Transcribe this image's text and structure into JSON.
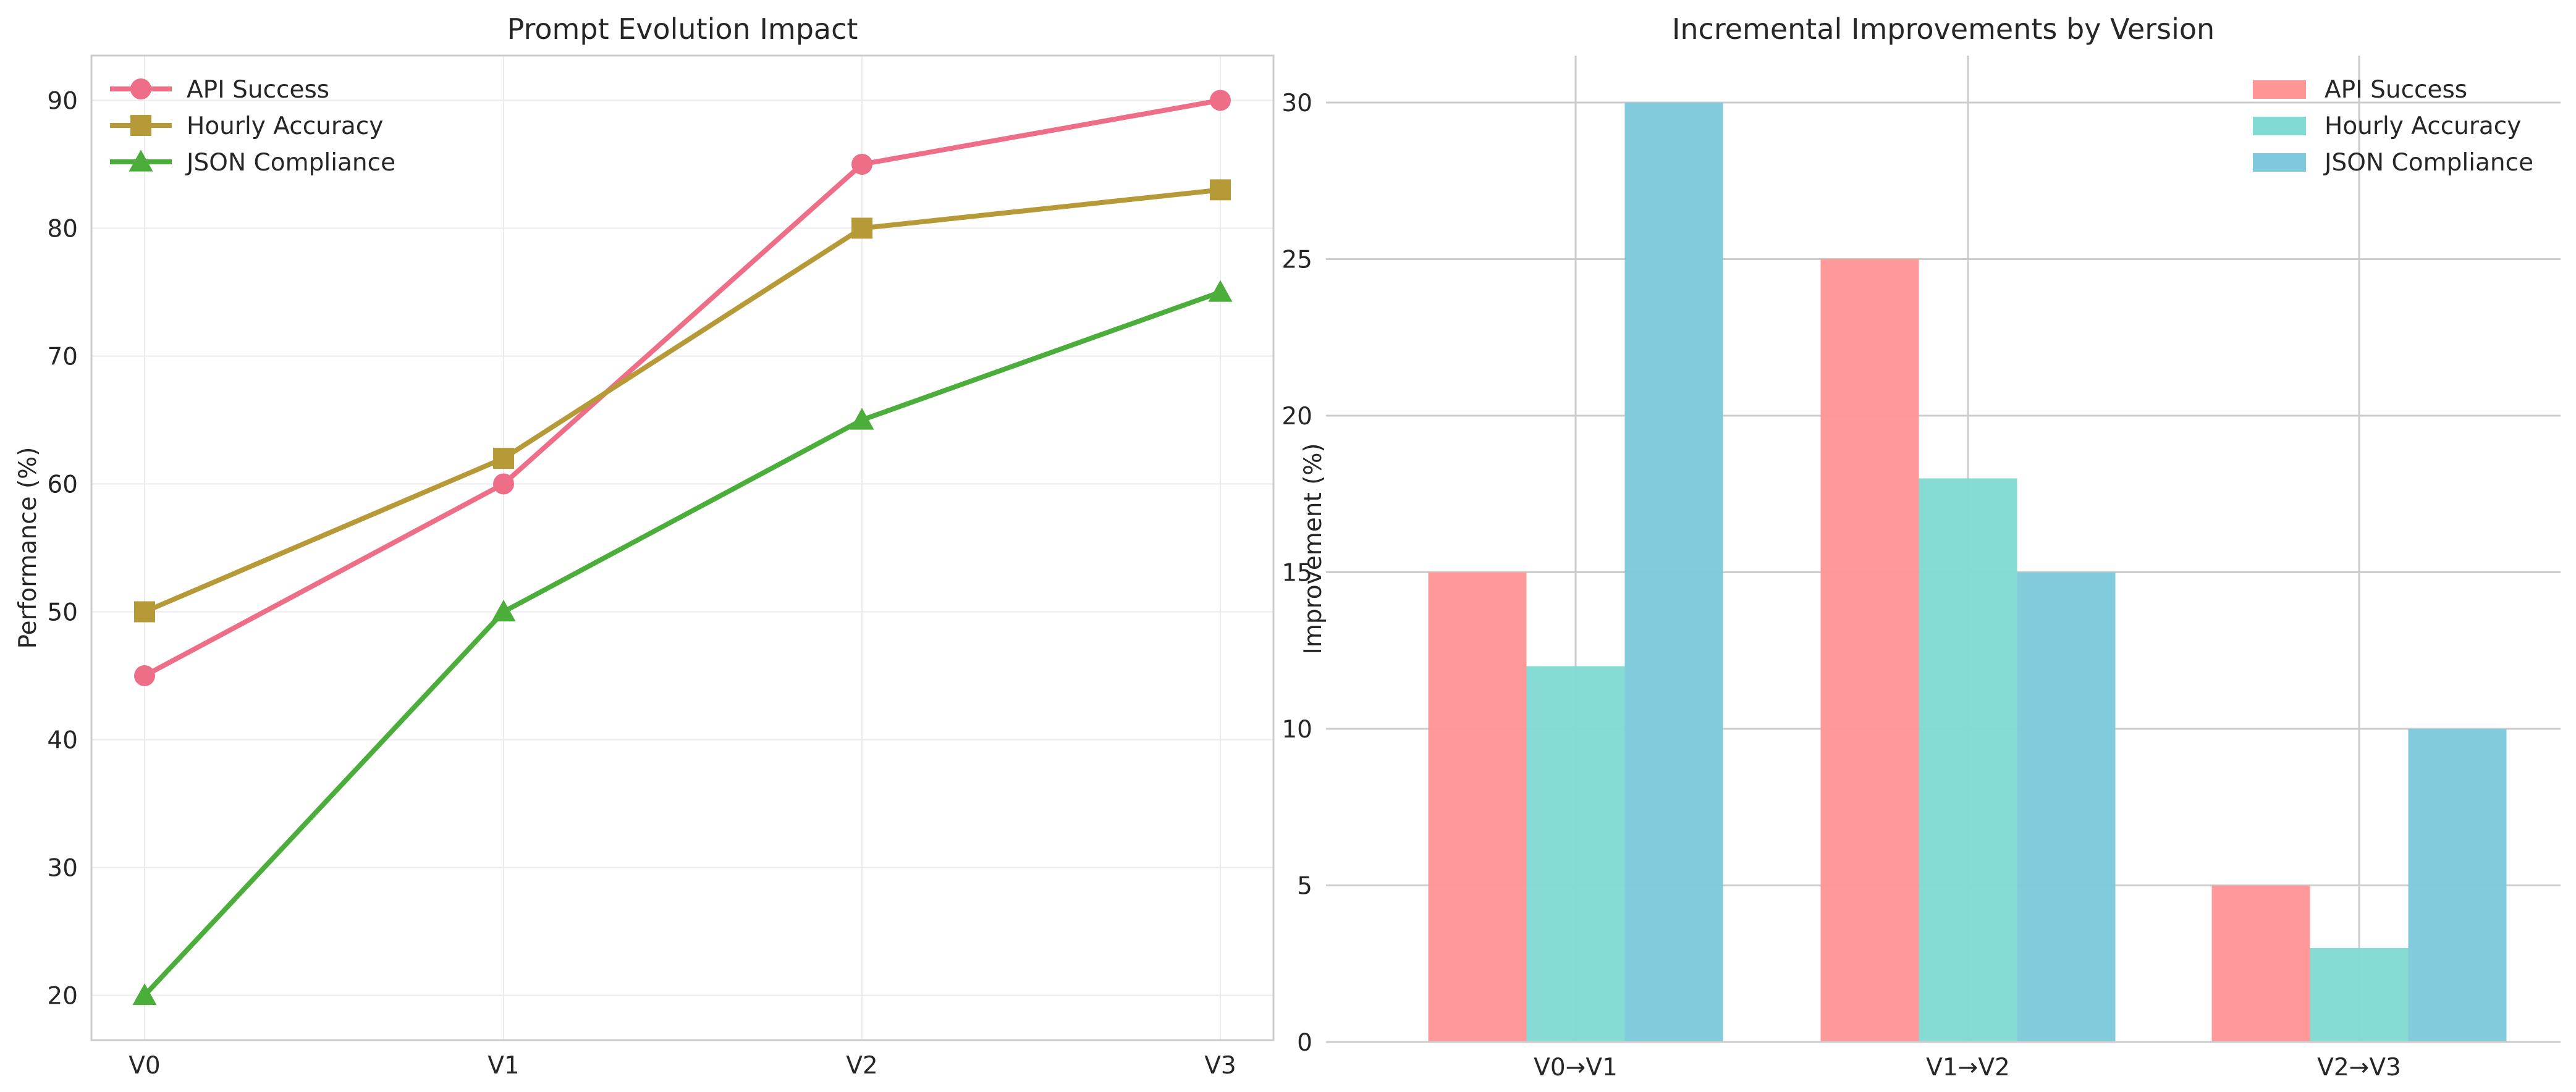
{
  "chart_data": [
    {
      "type": "line",
      "title": "Prompt Evolution Impact",
      "xlabel": "",
      "ylabel": "Performance (%)",
      "categories": [
        "V0",
        "V1",
        "V2",
        "V3"
      ],
      "ylim": [
        16.5,
        93.5
      ],
      "yticks": [
        20,
        30,
        40,
        50,
        60,
        70,
        80,
        90
      ],
      "grid": true,
      "legend_position": "top-left",
      "series": [
        {
          "name": "API Success",
          "values": [
            45,
            60,
            85,
            90
          ],
          "color": "#ee6d87",
          "marker": "circle"
        },
        {
          "name": "Hourly Accuracy",
          "values": [
            50,
            62,
            80,
            83
          ],
          "color": "#b79a38",
          "marker": "square"
        },
        {
          "name": "JSON Compliance",
          "values": [
            20,
            50,
            65,
            75
          ],
          "color": "#4bae3a",
          "marker": "triangle"
        }
      ]
    },
    {
      "type": "bar",
      "title": "Incremental Improvements by Version",
      "xlabel": "",
      "ylabel": "Improvement (%)",
      "categories": [
        "V0→V1",
        "V1→V2",
        "V2→V3"
      ],
      "ylim": [
        0,
        31.5
      ],
      "yticks": [
        0,
        5,
        10,
        15,
        20,
        25,
        30
      ],
      "grid": true,
      "legend_position": "top-right",
      "series": [
        {
          "name": "API Success",
          "values": [
            15,
            25,
            5
          ],
          "color": "#ff9595"
        },
        {
          "name": "Hourly Accuracy",
          "values": [
            12,
            18,
            3
          ],
          "color": "#82dad4"
        },
        {
          "name": "JSON Compliance",
          "values": [
            30,
            15,
            10
          ],
          "color": "#7ec9dc"
        }
      ]
    }
  ]
}
